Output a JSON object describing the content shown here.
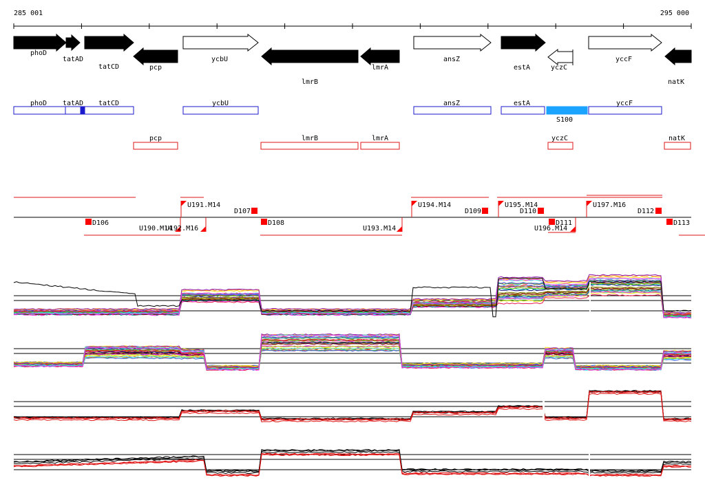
{
  "ruler": {
    "start_label": "285 001",
    "end_label": "295 000"
  },
  "colors": {
    "gene_fill": "#000000",
    "gene_outline": "#000000",
    "blue_box": "#1a1acc",
    "blue_fill": "#1aa3ff",
    "red_box": "#e01414",
    "red_mark": "#ff0000"
  },
  "genes": [
    {
      "label": "phoD",
      "strand": "forward",
      "filled": true
    },
    {
      "label": "tatAD",
      "strand": "forward",
      "filled": true
    },
    {
      "label": "tatCD",
      "strand": "forward",
      "filled": true
    },
    {
      "label": "pcp",
      "strand": "reverse",
      "filled": true
    },
    {
      "label": "ycbU",
      "strand": "forward",
      "filled": false
    },
    {
      "label": "lmrB",
      "strand": "reverse",
      "filled": true
    },
    {
      "label": "lmrA",
      "strand": "reverse",
      "filled": true
    },
    {
      "label": "ansZ",
      "strand": "forward",
      "filled": false
    },
    {
      "label": "estA",
      "strand": "forward",
      "filled": true
    },
    {
      "label": "yczC",
      "strand": "reverse",
      "filled": false
    },
    {
      "label": "yccF",
      "strand": "forward",
      "filled": false
    },
    {
      "label": "natK",
      "strand": "reverse",
      "filled": true
    }
  ],
  "forward_boxes": [
    {
      "label": "phoD"
    },
    {
      "label": "tatAD"
    },
    {
      "label": "tatCD"
    },
    {
      "label": "ycbU"
    },
    {
      "label": "ansZ"
    },
    {
      "label": "estA"
    },
    {
      "label": "S100",
      "highlight": true
    },
    {
      "label": "yccF"
    }
  ],
  "reverse_boxes": [
    {
      "label": "pcp"
    },
    {
      "label": "lmrB"
    },
    {
      "label": "lmrA"
    },
    {
      "label": "yczC"
    },
    {
      "label": "natK"
    }
  ],
  "segments": {
    "up_labels": [
      "U191.M14",
      "U194.M14",
      "U195.M14",
      "U197.M16"
    ],
    "down_labels": [
      "U190.M14",
      "U192.M16",
      "U193.M14",
      "U196.M14"
    ],
    "d_labels": [
      "D106",
      "D107",
      "D108",
      "D109",
      "D110",
      "D111",
      "D112",
      "D113"
    ]
  },
  "expression_panels": [
    {
      "kind": "many-samples"
    },
    {
      "kind": "many-samples"
    },
    {
      "kind": "two-tracks"
    },
    {
      "kind": "two-tracks"
    }
  ]
}
